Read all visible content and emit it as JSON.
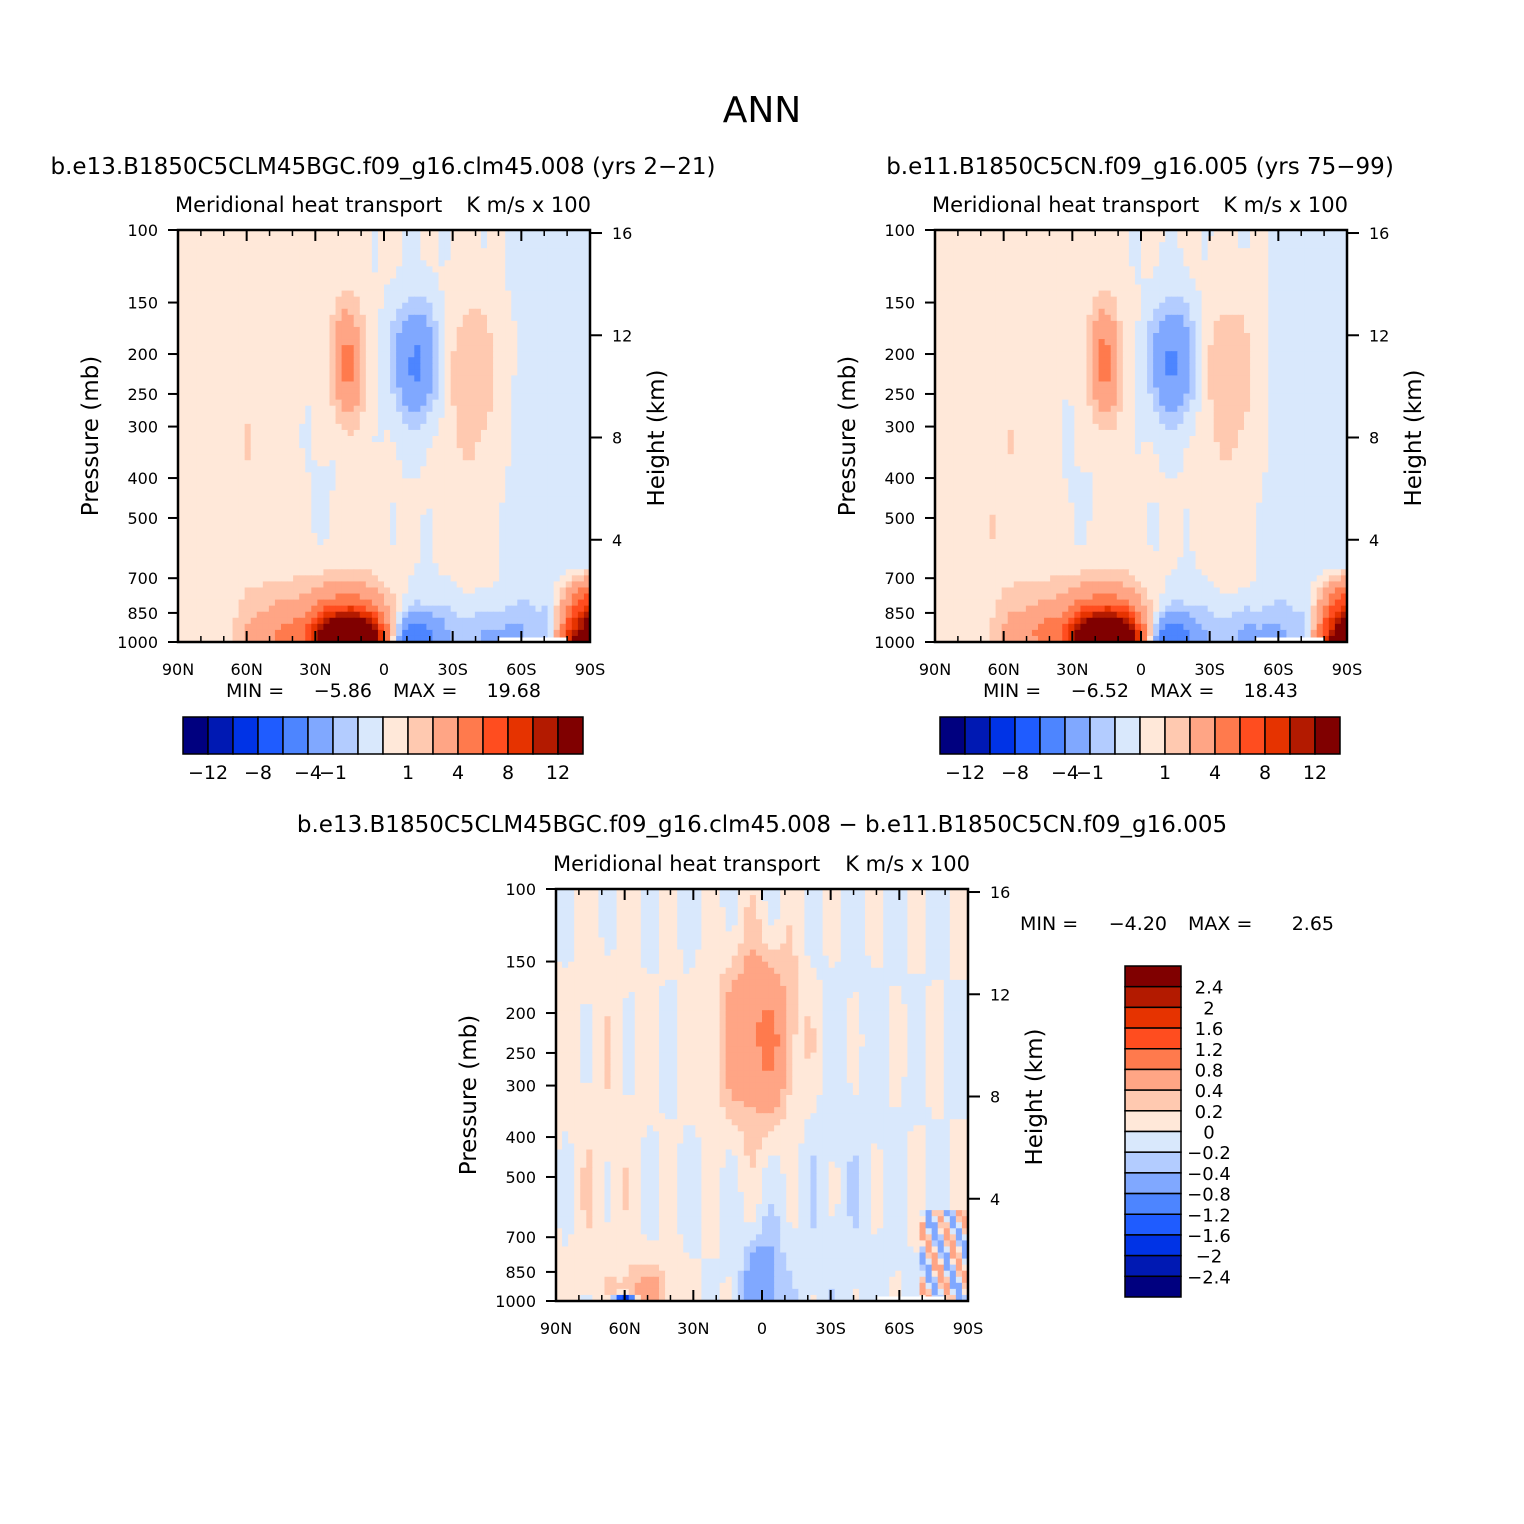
{
  "page_title": "ANN",
  "panels": [
    {
      "id": "case1",
      "case_title": "b.e13.B1850C5CLM45BGC.f09_g16.clm45.008 (yrs 2−21)",
      "left_string": "Meridional heat transport",
      "right_string": "K m/s x 100",
      "ylabel": "Pressure (mb)",
      "ylabel_right": "Height (km)",
      "min_label": "MIN =",
      "min_value": "−5.86",
      "max_label": "MAX =",
      "max_value": "19.68"
    },
    {
      "id": "case2",
      "case_title": "b.e11.B1850C5CN.f09_g16.005 (yrs 75−99)",
      "left_string": "Meridional heat transport",
      "right_string": "K m/s x 100",
      "ylabel": "Pressure (mb)",
      "ylabel_right": "Height (km)",
      "min_label": "MIN =",
      "min_value": "−6.52",
      "max_label": "MAX =",
      "max_value": "18.43"
    },
    {
      "id": "diff",
      "case_title": "b.e13.B1850C5CLM45BGC.f09_g16.clm45.008 − b.e11.B1850C5CN.f09_g16.005",
      "left_string": "Meridional heat transport",
      "right_string": "K m/s x 100",
      "ylabel": "Pressure (mb)",
      "ylabel_right": "Height (km)",
      "min_label": "MIN =",
      "min_value": "−4.20",
      "max_label": "MAX =",
      "max_value": "2.65"
    }
  ],
  "colorbars": {
    "main": {
      "colors": [
        "#00007f",
        "#0019b3",
        "#0033e6",
        "#1f5cff",
        "#4d85ff",
        "#80a8ff",
        "#b3ccff",
        "#d9e8fc",
        "#ffe8d9",
        "#ffc9b0",
        "#ffa585",
        "#ff7a4d",
        "#ff4d1f",
        "#e63300",
        "#b31a00",
        "#800000"
      ],
      "labels": [
        "−12",
        "−8",
        "−4",
        "−1",
        "1",
        "4",
        "8",
        "12"
      ]
    },
    "diff": {
      "colors": [
        "#800000",
        "#b31a00",
        "#e63300",
        "#ff4d1f",
        "#ff7a4d",
        "#ffa585",
        "#ffc9b0",
        "#ffe8d9",
        "#d9e8fc",
        "#b3ccff",
        "#80a8ff",
        "#4d85ff",
        "#1f5cff",
        "#0033e6",
        "#0019b3",
        "#00007f"
      ],
      "labels": [
        "2.4",
        "2",
        "1.6",
        "1.2",
        "0.8",
        "0.4",
        "0.2",
        "0",
        "−0.2",
        "−0.4",
        "−0.8",
        "−1.2",
        "−1.6",
        "−2",
        "−2.4"
      ]
    }
  },
  "chart_data": [
    {
      "type": "heatmap",
      "title": "b.e13.B1850C5CLM45BGC.f09_g16.clm45.008 (yrs 2−21)",
      "xlabel": "",
      "ylabel": "Pressure (mb)",
      "ylabel_right": "Height (km)",
      "x_ticks": [
        "90N",
        "60N",
        "30N",
        "0",
        "30S",
        "60S",
        "90S"
      ],
      "y_ticks": [
        100,
        150,
        200,
        250,
        300,
        400,
        500,
        700,
        850,
        1000
      ],
      "y_right_ticks": [
        4,
        8,
        12,
        16
      ],
      "xlim": [
        90,
        -90
      ],
      "ylim": [
        1000,
        100
      ],
      "y_scale": "log",
      "units": "K m/s x 100",
      "min": -5.86,
      "max": 19.68,
      "features": [
        {
          "lat": 15,
          "p": 975,
          "value": 19.68
        },
        {
          "lat": -12,
          "p": 975,
          "value": -5.86
        },
        {
          "lat": 15,
          "p": 220,
          "value": 4
        },
        {
          "lat": -15,
          "p": 220,
          "value": -4
        },
        {
          "lat": -50,
          "p": 950,
          "value": -2
        },
        {
          "lat": 50,
          "p": 950,
          "value": 2
        }
      ]
    },
    {
      "type": "heatmap",
      "title": "b.e11.B1850C5CN.f09_g16.005 (yrs 75−99)",
      "xlabel": "",
      "ylabel": "Pressure (mb)",
      "ylabel_right": "Height (km)",
      "x_ticks": [
        "90N",
        "60N",
        "30N",
        "0",
        "30S",
        "60S",
        "90S"
      ],
      "y_ticks": [
        100,
        150,
        200,
        250,
        300,
        400,
        500,
        700,
        850,
        1000
      ],
      "y_right_ticks": [
        4,
        8,
        12,
        16
      ],
      "xlim": [
        90,
        -90
      ],
      "ylim": [
        1000,
        100
      ],
      "y_scale": "log",
      "units": "K m/s x 100",
      "min": -6.52,
      "max": 18.43,
      "features": [
        {
          "lat": 15,
          "p": 975,
          "value": 18.43
        },
        {
          "lat": -12,
          "p": 975,
          "value": -6.52
        },
        {
          "lat": 15,
          "p": 220,
          "value": 4
        },
        {
          "lat": -15,
          "p": 220,
          "value": -4
        },
        {
          "lat": -50,
          "p": 950,
          "value": -2
        },
        {
          "lat": 50,
          "p": 950,
          "value": 2
        }
      ]
    },
    {
      "type": "heatmap",
      "title": "b.e13.B1850C5CLM45BGC.f09_g16.clm45.008 − b.e11.B1850C5CN.f09_g16.005",
      "xlabel": "",
      "ylabel": "Pressure (mb)",
      "ylabel_right": "Height (km)",
      "x_ticks": [
        "90N",
        "60N",
        "30N",
        "0",
        "30S",
        "60S",
        "90S"
      ],
      "y_ticks": [
        100,
        150,
        200,
        250,
        300,
        400,
        500,
        700,
        850,
        1000
      ],
      "y_right_ticks": [
        4,
        8,
        12,
        16
      ],
      "xlim": [
        90,
        -90
      ],
      "ylim": [
        1000,
        100
      ],
      "y_scale": "log",
      "units": "K m/s x 100",
      "min": -4.2,
      "max": 2.65,
      "features": [
        {
          "lat": 1,
          "p": 220,
          "value": 0.8
        },
        {
          "lat": 0,
          "p": 900,
          "value": -0.8
        },
        {
          "lat": 50,
          "p": 950,
          "value": 0.6
        },
        {
          "lat": 60,
          "p": 1000,
          "value": -4.2
        }
      ]
    }
  ]
}
